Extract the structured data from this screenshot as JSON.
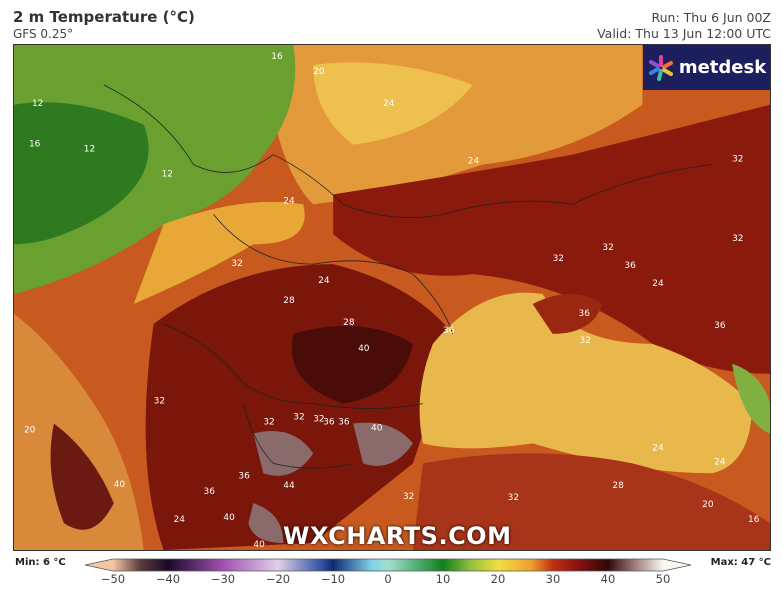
{
  "header": {
    "title": "2 m Temperature (°C)",
    "model": "GFS 0.25°",
    "run": "Run: Thu 6 Jun 00Z",
    "valid": "Valid: Thu 13 Jun 12:00 UTC"
  },
  "logo": {
    "text": "metdesk"
  },
  "watermark": "WXCHARTS.COM",
  "legend": {
    "min": "Min: 6 °C",
    "max": "Max: 47 °C",
    "unit": "°C",
    "ticks": [
      "−50",
      "−40",
      "−30",
      "−20",
      "−10",
      "0",
      "10",
      "20",
      "30",
      "40",
      "50"
    ],
    "range": [
      -50,
      50
    ],
    "colors": [
      [
        "-50",
        "#f4c6a4"
      ],
      [
        "-45",
        "#5a3a3a"
      ],
      [
        "-40",
        "#1a0a2a"
      ],
      [
        "-30",
        "#a050b0"
      ],
      [
        "-20",
        "#e0d0e8"
      ],
      [
        "-12",
        "#3050a0"
      ],
      [
        "-10",
        "#102a70"
      ],
      [
        "-3",
        "#80d0e8"
      ],
      [
        "0",
        "#a0e0d0"
      ],
      [
        "10",
        "#108020"
      ],
      [
        "15",
        "#90c040"
      ],
      [
        "20",
        "#f0e040"
      ],
      [
        "26",
        "#f0a030"
      ],
      [
        "30",
        "#c03010"
      ],
      [
        "35",
        "#801010"
      ],
      [
        "40",
        "#300808"
      ],
      [
        "45",
        "#a08080"
      ],
      [
        "50",
        "#f8f8f0"
      ]
    ]
  },
  "map": {
    "contour_labels": [
      "16",
      "12",
      "12",
      "12",
      "16",
      "20",
      "24",
      "24",
      "24",
      "24",
      "32",
      "32",
      "32",
      "36",
      "36",
      "32",
      "24",
      "36",
      "32",
      "28",
      "28",
      "40",
      "36",
      "36",
      "32",
      "32",
      "32",
      "36",
      "40",
      "36",
      "32",
      "40",
      "36",
      "44",
      "40",
      "40",
      "36",
      "32",
      "32",
      "28",
      "24",
      "20",
      "16",
      "24",
      "32",
      "24",
      "20"
    ]
  }
}
